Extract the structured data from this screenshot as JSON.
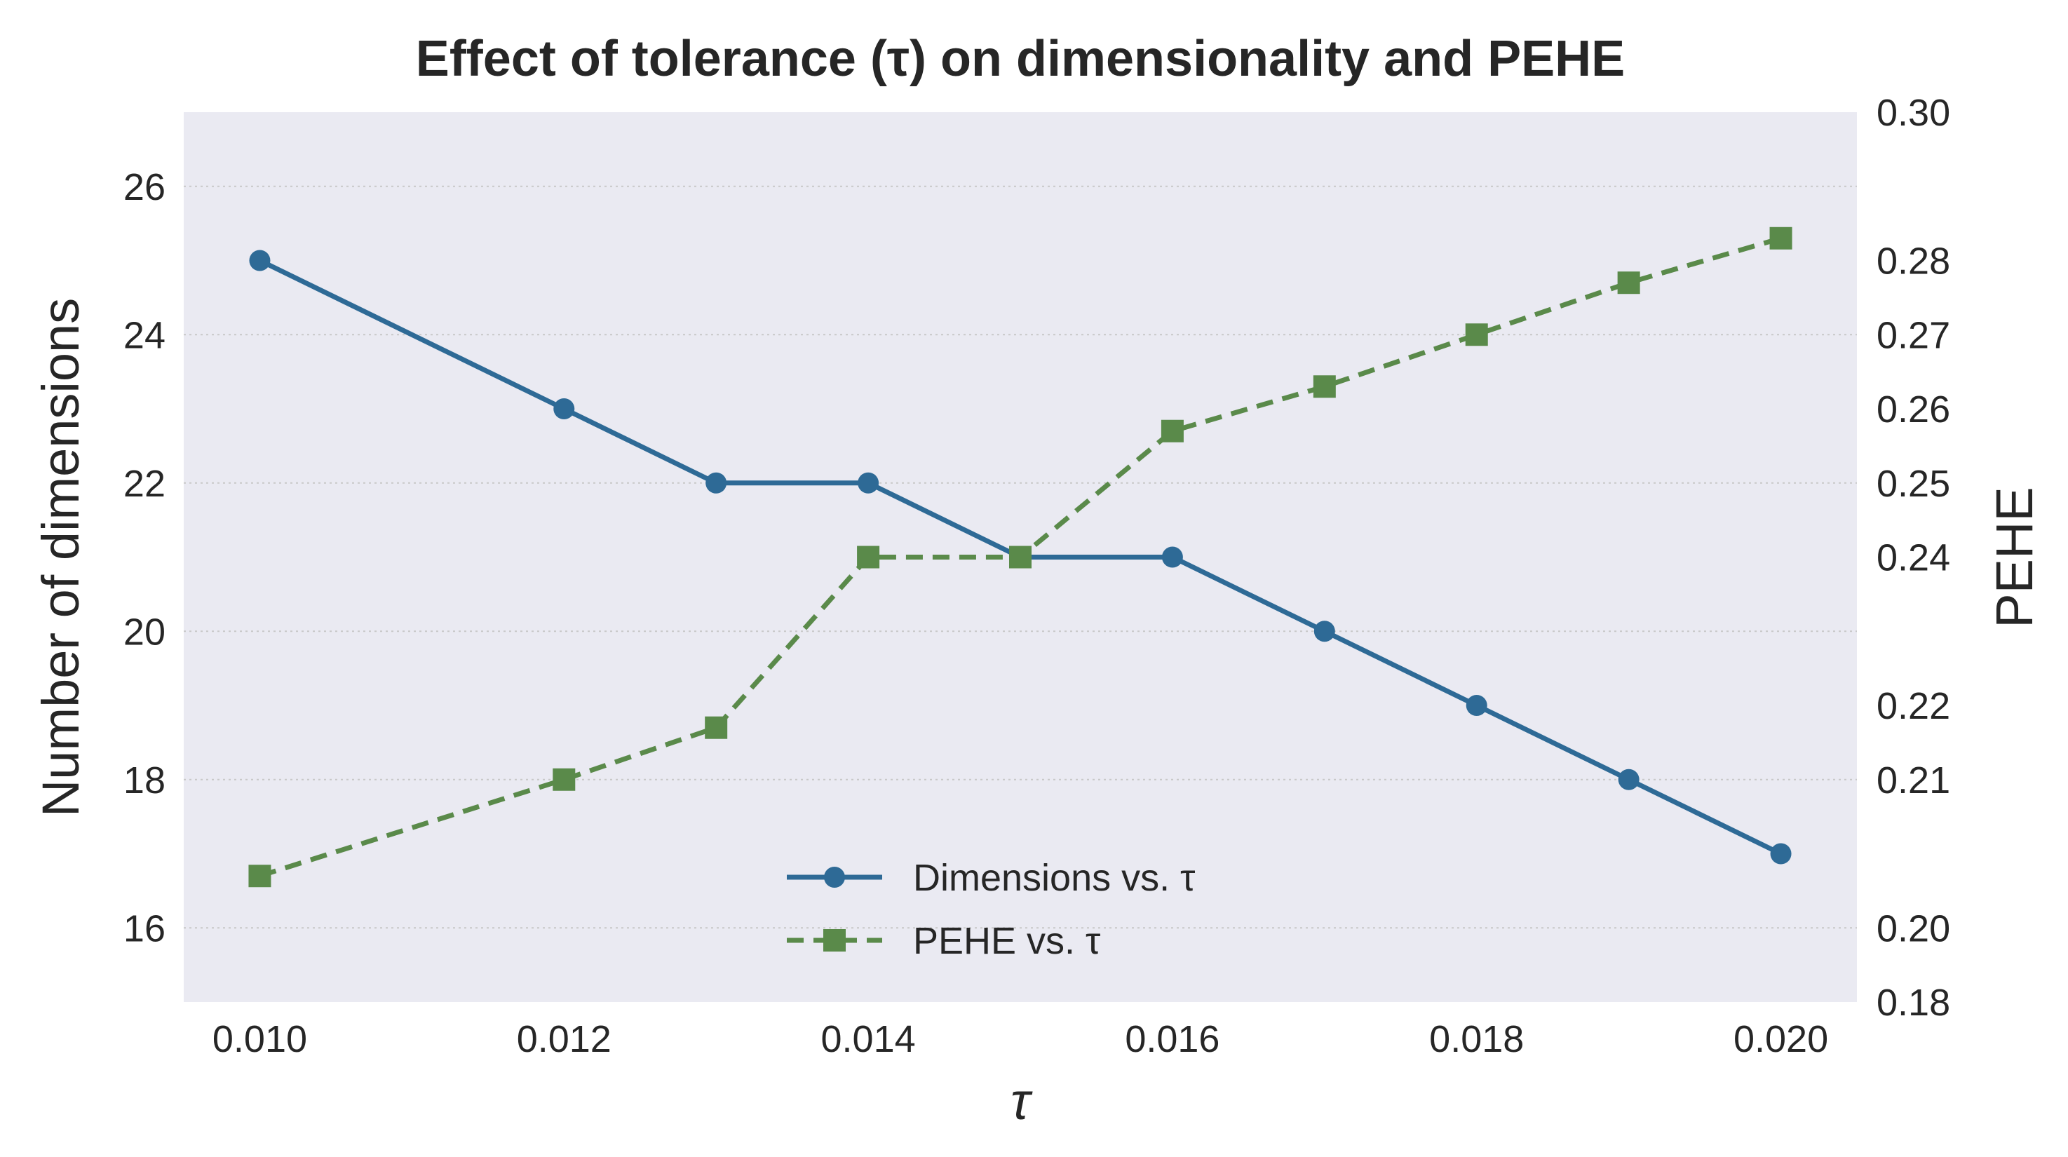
{
  "chart_data": {
    "type": "line",
    "title": "Effect of tolerance (τ) on dimensionality and PEHE",
    "xlabel": "τ",
    "ylabel_left": "Number of dimensions",
    "ylabel_right": "PEHE",
    "xlim": [
      0.0095,
      0.0205
    ],
    "ylim_left": [
      15,
      27
    ],
    "ylim_right": [
      0.18,
      0.3
    ],
    "x_ticks": [
      "0.010",
      "0.012",
      "0.014",
      "0.016",
      "0.018",
      "0.020"
    ],
    "x_tick_values": [
      0.01,
      0.012,
      0.014,
      0.016,
      0.018,
      0.02
    ],
    "y_left_ticks": [
      "16",
      "18",
      "20",
      "22",
      "24",
      "26"
    ],
    "y_left_tick_values": [
      16,
      18,
      20,
      22,
      24,
      26
    ],
    "y_right_ticks": [
      "0.18",
      "0.20",
      "0.21",
      "0.22",
      "0.24",
      "0.25",
      "0.26",
      "0.27",
      "0.28",
      "0.30"
    ],
    "y_right_tick_values_in_left_units": [
      15,
      16,
      18,
      19,
      21,
      22,
      23,
      24,
      25,
      27
    ],
    "x": [
      0.01,
      0.012,
      0.013,
      0.014,
      0.015,
      0.016,
      0.017,
      0.018,
      0.019,
      0.02
    ],
    "series": [
      {
        "name": "Dimensions vs. τ",
        "axis": "left",
        "color": "#2e6a96",
        "style": "solid",
        "marker": "circle",
        "values": [
          25,
          23,
          22,
          22,
          21,
          21,
          20,
          19,
          18,
          17
        ]
      },
      {
        "name": "PEHE vs. τ",
        "axis": "right",
        "color": "#5a8a4a",
        "style": "dashed",
        "marker": "square",
        "values": [
          0.197,
          0.21,
          0.217,
          0.24,
          0.24,
          0.257,
          0.263,
          0.27,
          0.277,
          0.283
        ]
      }
    ],
    "grid": "horizontal dotted",
    "legend_position": "lower center",
    "plot_background": "#eaeaf2"
  }
}
